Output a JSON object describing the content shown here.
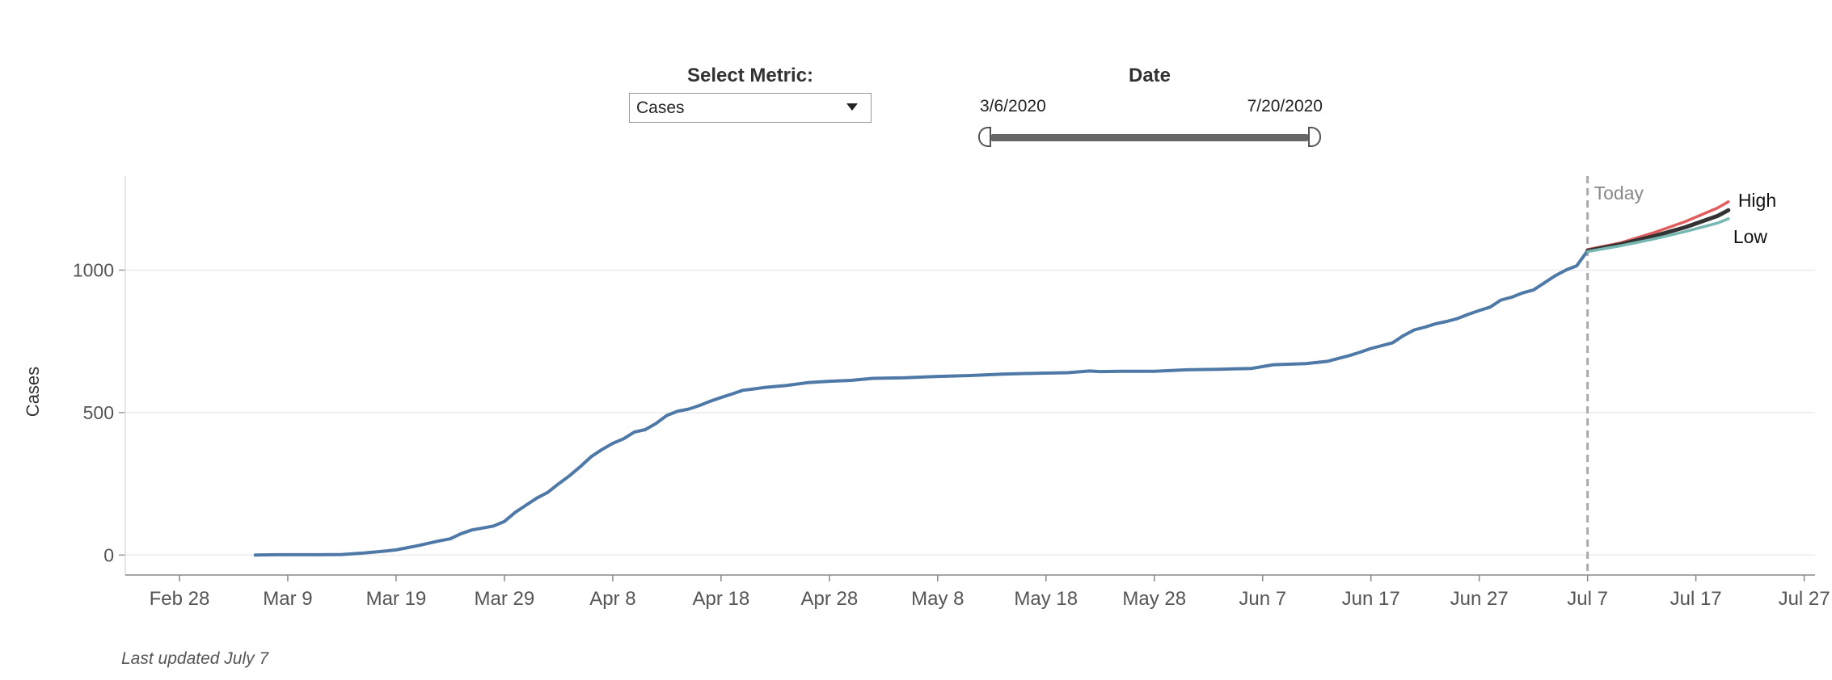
{
  "controls": {
    "metric_title": "Select Metric:",
    "metric_value": "Cases",
    "date_title": "Date",
    "date_start": "3/6/2020",
    "date_end": "7/20/2020"
  },
  "footnote": "Last updated July 7",
  "chart_data": {
    "type": "line",
    "ylabel": "Cases",
    "xlabel": "",
    "ylim": [
      -70,
      1330
    ],
    "y_ticks": [
      0,
      500,
      1000
    ],
    "x_ticks": [
      "2020-02-28",
      "2020-03-09",
      "2020-03-19",
      "2020-03-29",
      "2020-04-08",
      "2020-04-18",
      "2020-04-28",
      "2020-05-08",
      "2020-05-18",
      "2020-05-28",
      "2020-06-07",
      "2020-06-17",
      "2020-06-27",
      "2020-07-07",
      "2020-07-17",
      "2020-07-27"
    ],
    "x_tick_labels": [
      "Feb 28",
      "Mar 9",
      "Mar 19",
      "Mar 29",
      "Apr 8",
      "Apr 18",
      "Apr 28",
      "May 8",
      "May 18",
      "May 28",
      "Jun 7",
      "Jun 17",
      "Jun 27",
      "Jul 7",
      "Jul 17",
      "Jul 27"
    ],
    "grid": "horizontal",
    "today": {
      "date": "2020-07-07",
      "label": "Today"
    },
    "series": [
      {
        "color": "#4e79a7",
        "points": [
          [
            "2020-03-06",
            0
          ],
          [
            "2020-03-08",
            1
          ],
          [
            "2020-03-10",
            1
          ],
          [
            "2020-03-12",
            1
          ],
          [
            "2020-03-14",
            2
          ],
          [
            "2020-03-16",
            7
          ],
          [
            "2020-03-18",
            14
          ],
          [
            "2020-03-19",
            18
          ],
          [
            "2020-03-21",
            33
          ],
          [
            "2020-03-23",
            50
          ],
          [
            "2020-03-24",
            57
          ],
          [
            "2020-03-25",
            75
          ],
          [
            "2020-03-26",
            88
          ],
          [
            "2020-03-27",
            95
          ],
          [
            "2020-03-28",
            102
          ],
          [
            "2020-03-29",
            118
          ],
          [
            "2020-03-30",
            150
          ],
          [
            "2020-03-31",
            175
          ],
          [
            "2020-04-01",
            200
          ],
          [
            "2020-04-02",
            220
          ],
          [
            "2020-04-03",
            250
          ],
          [
            "2020-04-04",
            278
          ],
          [
            "2020-04-05",
            310
          ],
          [
            "2020-04-06",
            345
          ],
          [
            "2020-04-07",
            370
          ],
          [
            "2020-04-08",
            392
          ],
          [
            "2020-04-09",
            408
          ],
          [
            "2020-04-10",
            432
          ],
          [
            "2020-04-11",
            440
          ],
          [
            "2020-04-12",
            462
          ],
          [
            "2020-04-13",
            490
          ],
          [
            "2020-04-14",
            505
          ],
          [
            "2020-04-15",
            512
          ],
          [
            "2020-04-16",
            525
          ],
          [
            "2020-04-17",
            540
          ],
          [
            "2020-04-18",
            553
          ],
          [
            "2020-04-19",
            565
          ],
          [
            "2020-04-20",
            578
          ],
          [
            "2020-04-21",
            583
          ],
          [
            "2020-04-22",
            588
          ],
          [
            "2020-04-24",
            595
          ],
          [
            "2020-04-26",
            605
          ],
          [
            "2020-04-28",
            610
          ],
          [
            "2020-04-30",
            613
          ],
          [
            "2020-05-02",
            620
          ],
          [
            "2020-05-05",
            622
          ],
          [
            "2020-05-08",
            627
          ],
          [
            "2020-05-11",
            630
          ],
          [
            "2020-05-14",
            635
          ],
          [
            "2020-05-17",
            638
          ],
          [
            "2020-05-20",
            640
          ],
          [
            "2020-05-22",
            646
          ],
          [
            "2020-05-23",
            644
          ],
          [
            "2020-05-25",
            645
          ],
          [
            "2020-05-28",
            645
          ],
          [
            "2020-05-31",
            650
          ],
          [
            "2020-06-03",
            652
          ],
          [
            "2020-06-06",
            655
          ],
          [
            "2020-06-08",
            668
          ],
          [
            "2020-06-11",
            672
          ],
          [
            "2020-06-13",
            680
          ],
          [
            "2020-06-14",
            690
          ],
          [
            "2020-06-15",
            700
          ],
          [
            "2020-06-16",
            712
          ],
          [
            "2020-06-17",
            725
          ],
          [
            "2020-06-18",
            735
          ],
          [
            "2020-06-19",
            745
          ],
          [
            "2020-06-20",
            770
          ],
          [
            "2020-06-21",
            790
          ],
          [
            "2020-06-22",
            800
          ],
          [
            "2020-06-23",
            812
          ],
          [
            "2020-06-24",
            820
          ],
          [
            "2020-06-25",
            830
          ],
          [
            "2020-06-26",
            845
          ],
          [
            "2020-06-27",
            858
          ],
          [
            "2020-06-28",
            870
          ],
          [
            "2020-06-29",
            895
          ],
          [
            "2020-06-30",
            905
          ],
          [
            "2020-07-01",
            920
          ],
          [
            "2020-07-02",
            930
          ],
          [
            "2020-07-03",
            955
          ],
          [
            "2020-07-04",
            980
          ],
          [
            "2020-07-05",
            1000
          ],
          [
            "2020-07-06",
            1015
          ],
          [
            "2020-07-07",
            1068
          ]
        ]
      },
      {
        "name": "High",
        "color": "#e05d5d",
        "points": [
          [
            "2020-07-07",
            1072
          ],
          [
            "2020-07-10",
            1095
          ],
          [
            "2020-07-13",
            1130
          ],
          [
            "2020-07-16",
            1170
          ],
          [
            "2020-07-19",
            1218
          ],
          [
            "2020-07-20",
            1240
          ]
        ]
      },
      {
        "color": "#333333",
        "points": [
          [
            "2020-07-07",
            1068
          ],
          [
            "2020-07-10",
            1090
          ],
          [
            "2020-07-13",
            1118
          ],
          [
            "2020-07-16",
            1150
          ],
          [
            "2020-07-19",
            1190
          ],
          [
            "2020-07-20",
            1210
          ]
        ]
      },
      {
        "name": "Low",
        "color": "#76b7b2",
        "points": [
          [
            "2020-07-07",
            1065
          ],
          [
            "2020-07-10",
            1085
          ],
          [
            "2020-07-13",
            1108
          ],
          [
            "2020-07-16",
            1135
          ],
          [
            "2020-07-19",
            1165
          ],
          [
            "2020-07-20",
            1180
          ]
        ]
      }
    ]
  }
}
